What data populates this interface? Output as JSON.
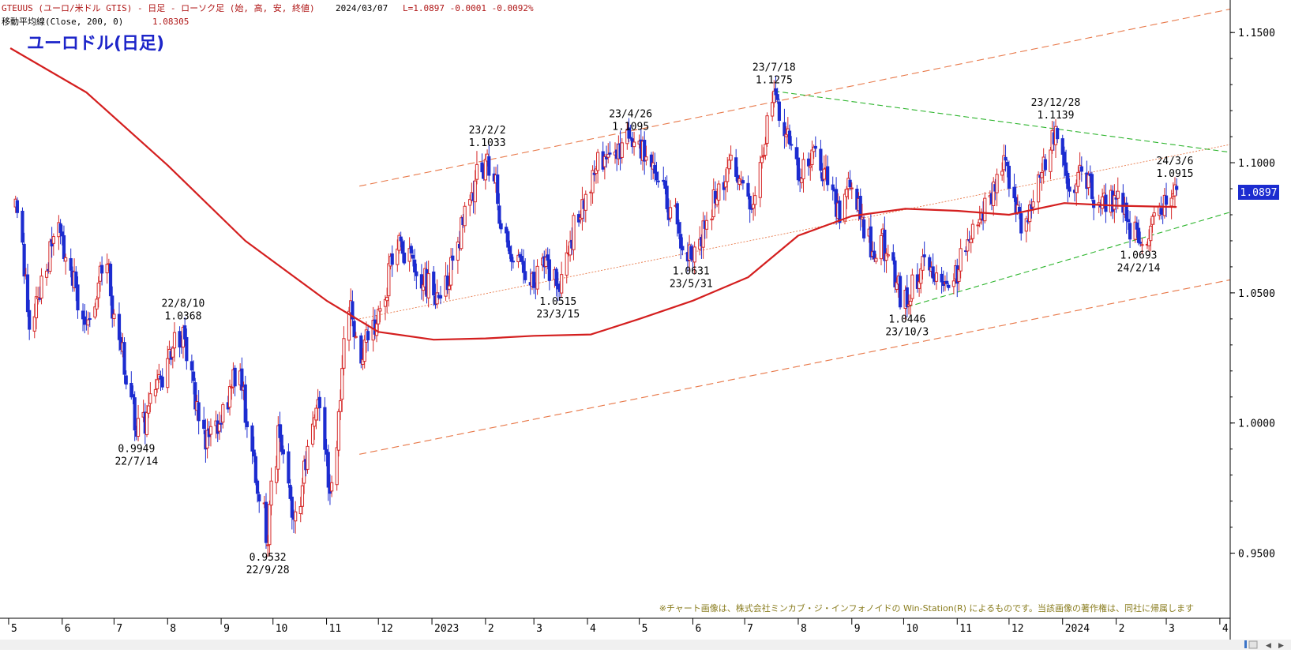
{
  "header": {
    "line1_symbol": "GTEUUS (ユーロ/米ドル GTIS) - 日足 - ローソク足 (始, 高, 安, 終値)",
    "line1_date": "2024/03/07",
    "line1_values": "L=1.0897 -0.0001 -0.0092%",
    "line2_label": "移動平均線(Close, 200, 0)",
    "line2_value": "1.08305"
  },
  "chart_title": "ユーロドル(日足)",
  "copyright": "※チャート画像は、株式会社ミンカブ・ジ・インフォノイドの Win-Station(R) によるものです。当該画像の著作権は、同社に帰属します",
  "price_tag": "1.0897",
  "colors": {
    "candle_up": "#d62a2a",
    "candle_down": "#1c2cd0",
    "ma": "#d41f1f",
    "channel": "#e8794a",
    "triangle": "#2eb52e",
    "price_tag_bg": "#1c2cd0",
    "title": "#1d25c9",
    "header_red": "#b01818",
    "copyright": "#8a7d1f"
  },
  "chart_data": {
    "type": "candlestick",
    "ylim": [
      0.925,
      1.1625
    ],
    "y_ticks": [
      "1.1500",
      "1.1000",
      "1.0500",
      "1.0000",
      "0.9500"
    ],
    "x_ticks": [
      "5",
      "6",
      "7",
      "8",
      "9",
      "10",
      "11",
      "12",
      "2023",
      "2",
      "3",
      "4",
      "5",
      "6",
      "7",
      "8",
      "9",
      "10",
      "11",
      "12",
      "2024",
      "2",
      "3",
      "4"
    ],
    "swing_points": [
      {
        "date": "2022-05-05",
        "price": 1.086
      },
      {
        "date": "2022-05-13",
        "price": 1.036
      },
      {
        "date": "2022-05-30",
        "price": 1.077
      },
      {
        "date": "2022-06-15",
        "price": 1.038
      },
      {
        "date": "2022-06-27",
        "price": 1.061
      },
      {
        "date": "2022-07-14",
        "price": 0.9949
      },
      {
        "date": "2022-08-10",
        "price": 1.0368
      },
      {
        "date": "2022-08-23",
        "price": 0.99
      },
      {
        "date": "2022-09-12",
        "price": 1.02
      },
      {
        "date": "2022-09-28",
        "price": 0.9532
      },
      {
        "date": "2022-10-04",
        "price": 0.999
      },
      {
        "date": "2022-10-13",
        "price": 0.963
      },
      {
        "date": "2022-10-27",
        "price": 1.009
      },
      {
        "date": "2022-11-03",
        "price": 0.973
      },
      {
        "date": "2022-11-15",
        "price": 1.047
      },
      {
        "date": "2022-11-21",
        "price": 1.023
      },
      {
        "date": "2022-12-14",
        "price": 1.07
      },
      {
        "date": "2022-12-22",
        "price": 1.058
      },
      {
        "date": "2023-01-06",
        "price": 1.048
      },
      {
        "date": "2023-01-26",
        "price": 1.093
      },
      {
        "date": "2023-02-02",
        "price": 1.1033
      },
      {
        "date": "2023-02-15",
        "price": 1.065
      },
      {
        "date": "2023-02-27",
        "price": 1.053
      },
      {
        "date": "2023-03-07",
        "price": 1.06
      },
      {
        "date": "2023-03-15",
        "price": 1.0515
      },
      {
        "date": "2023-04-04",
        "price": 1.097
      },
      {
        "date": "2023-04-26",
        "price": 1.1095
      },
      {
        "date": "2023-05-10",
        "price": 1.096
      },
      {
        "date": "2023-05-31",
        "price": 1.0631
      },
      {
        "date": "2023-06-22",
        "price": 1.101
      },
      {
        "date": "2023-07-06",
        "price": 1.084
      },
      {
        "date": "2023-07-18",
        "price": 1.1275
      },
      {
        "date": "2023-08-02",
        "price": 1.093
      },
      {
        "date": "2023-08-10",
        "price": 1.106
      },
      {
        "date": "2023-08-25",
        "price": 1.077
      },
      {
        "date": "2023-08-30",
        "price": 1.094
      },
      {
        "date": "2023-09-14",
        "price": 1.063
      },
      {
        "date": "2023-09-18",
        "price": 1.072
      },
      {
        "date": "2023-10-03",
        "price": 1.0446
      },
      {
        "date": "2023-10-12",
        "price": 1.064
      },
      {
        "date": "2023-10-27",
        "price": 1.052
      },
      {
        "date": "2023-11-08",
        "price": 1.07
      },
      {
        "date": "2023-11-29",
        "price": 1.101
      },
      {
        "date": "2023-12-08",
        "price": 1.073
      },
      {
        "date": "2023-12-28",
        "price": 1.1139
      },
      {
        "date": "2024-01-04",
        "price": 1.09
      },
      {
        "date": "2024-01-11",
        "price": 1.099
      },
      {
        "date": "2024-01-23",
        "price": 1.083
      },
      {
        "date": "2024-02-01",
        "price": 1.086
      },
      {
        "date": "2024-02-14",
        "price": 1.0693
      },
      {
        "date": "2024-03-01",
        "price": 1.084
      },
      {
        "date": "2024-03-06",
        "price": 1.0915
      }
    ],
    "moving_average_200": [
      {
        "date": "2022-05-02",
        "value": 1.144
      },
      {
        "date": "2022-06-15",
        "value": 1.127
      },
      {
        "date": "2022-08-01",
        "value": 1.099
      },
      {
        "date": "2022-09-15",
        "value": 1.07
      },
      {
        "date": "2022-11-01",
        "value": 1.047
      },
      {
        "date": "2022-12-01",
        "value": 1.035
      },
      {
        "date": "2023-01-02",
        "value": 1.032
      },
      {
        "date": "2023-02-01",
        "value": 1.0325
      },
      {
        "date": "2023-03-01",
        "value": 1.0335
      },
      {
        "date": "2023-04-03",
        "value": 1.034
      },
      {
        "date": "2023-05-01",
        "value": 1.04
      },
      {
        "date": "2023-06-01",
        "value": 1.047
      },
      {
        "date": "2023-07-03",
        "value": 1.056
      },
      {
        "date": "2023-08-01",
        "value": 1.072
      },
      {
        "date": "2023-09-01",
        "value": 1.0795
      },
      {
        "date": "2023-10-02",
        "value": 1.0823
      },
      {
        "date": "2023-11-01",
        "value": 1.0815
      },
      {
        "date": "2023-12-01",
        "value": 1.08
      },
      {
        "date": "2024-01-02",
        "value": 1.0845
      },
      {
        "date": "2024-02-01",
        "value": 1.0835
      },
      {
        "date": "2024-03-07",
        "value": 1.083
      }
    ],
    "trendlines": [
      {
        "kind": "channel-upper",
        "from": {
          "date": "2022-11-20",
          "price": 1.091
        },
        "to": {
          "date": "2024-04-07",
          "price": 1.159
        }
      },
      {
        "kind": "channel-mid",
        "from": {
          "date": "2022-11-20",
          "price": 1.04
        },
        "to": {
          "date": "2024-04-07",
          "price": 1.107
        }
      },
      {
        "kind": "channel-lower",
        "from": {
          "date": "2022-11-20",
          "price": 0.988
        },
        "to": {
          "date": "2024-04-07",
          "price": 1.055
        }
      },
      {
        "kind": "resistance",
        "from": {
          "date": "2023-07-18",
          "price": 1.1275
        },
        "to": {
          "date": "2024-04-07",
          "price": 1.104
        }
      },
      {
        "kind": "support",
        "from": {
          "date": "2023-10-03",
          "price": 1.0446
        },
        "to": {
          "date": "2024-04-07",
          "price": 1.081
        }
      }
    ],
    "annotations": [
      {
        "date": "2022-07-14",
        "price": 0.9949,
        "lines": [
          "0.9949",
          "22/7/14"
        ],
        "position": "below"
      },
      {
        "date": "2022-08-10",
        "price": 1.0368,
        "lines": [
          "22/8/10",
          "1.0368"
        ],
        "position": "above"
      },
      {
        "date": "2022-09-28",
        "price": 0.9532,
        "lines": [
          "0.9532",
          "22/9/28"
        ],
        "position": "below"
      },
      {
        "date": "2023-02-02",
        "price": 1.1033,
        "lines": [
          "23/2/2",
          "1.1033"
        ],
        "position": "above"
      },
      {
        "date": "2023-03-15",
        "price": 1.0515,
        "lines": [
          "1.0515",
          "23/3/15"
        ],
        "position": "below"
      },
      {
        "date": "2023-04-26",
        "price": 1.1095,
        "lines": [
          "23/4/26",
          "1.1095"
        ],
        "position": "above"
      },
      {
        "date": "2023-05-31",
        "price": 1.0631,
        "lines": [
          "1.0631",
          "23/5/31"
        ],
        "position": "below"
      },
      {
        "date": "2023-07-18",
        "price": 1.1275,
        "lines": [
          "23/7/18",
          "1.1275"
        ],
        "position": "above"
      },
      {
        "date": "2023-10-03",
        "price": 1.0446,
        "lines": [
          "1.0446",
          "23/10/3"
        ],
        "position": "below"
      },
      {
        "date": "2023-12-28",
        "price": 1.1139,
        "lines": [
          "23/12/28",
          "1.1139"
        ],
        "position": "above"
      },
      {
        "date": "2024-02-14",
        "price": 1.0693,
        "lines": [
          "1.0693",
          "24/2/14"
        ],
        "position": "below"
      },
      {
        "date": "2024-03-06",
        "price": 1.0915,
        "lines": [
          "24/3/6",
          "1.0915"
        ],
        "position": "above"
      }
    ],
    "last_close": 1.0897
  }
}
